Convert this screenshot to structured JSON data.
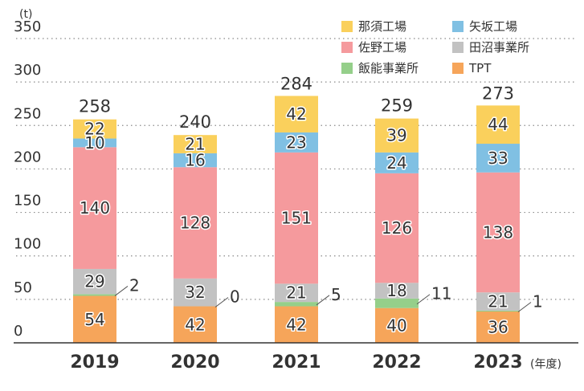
{
  "chart_data": {
    "type": "bar",
    "stacked": true,
    "y_unit_label": "(t)",
    "x_unit_label": "(年度)",
    "categories": [
      "2019",
      "2020",
      "2021",
      "2022",
      "2023"
    ],
    "ylim": [
      0,
      350
    ],
    "yticks": [
      0,
      50,
      100,
      150,
      200,
      250,
      300,
      350
    ],
    "grid": true,
    "legend_position": "top-right",
    "series": [
      {
        "name": "TPT",
        "color": "#f6a55a",
        "values": [
          54,
          42,
          42,
          40,
          36
        ]
      },
      {
        "name": "飯能事業所",
        "color": "#95cf8a",
        "values": [
          2,
          0,
          5,
          11,
          1
        ]
      },
      {
        "name": "田沼事業所",
        "color": "#c2c2c2",
        "values": [
          29,
          32,
          21,
          18,
          21
        ]
      },
      {
        "name": "佐野工場",
        "color": "#f59a9d",
        "values": [
          140,
          128,
          151,
          126,
          138
        ]
      },
      {
        "name": "矢坂工場",
        "color": "#80c0e3",
        "values": [
          10,
          16,
          23,
          24,
          33
        ]
      },
      {
        "name": "那須工場",
        "color": "#fad05c",
        "values": [
          22,
          21,
          42,
          39,
          44
        ]
      }
    ],
    "totals": [
      258,
      240,
      284,
      259,
      273
    ],
    "legend_order": [
      "那須工場",
      "矢坂工場",
      "佐野工場",
      "田沼事業所",
      "飯能事業所",
      "TPT"
    ],
    "callout_series": "飯能事業所"
  }
}
